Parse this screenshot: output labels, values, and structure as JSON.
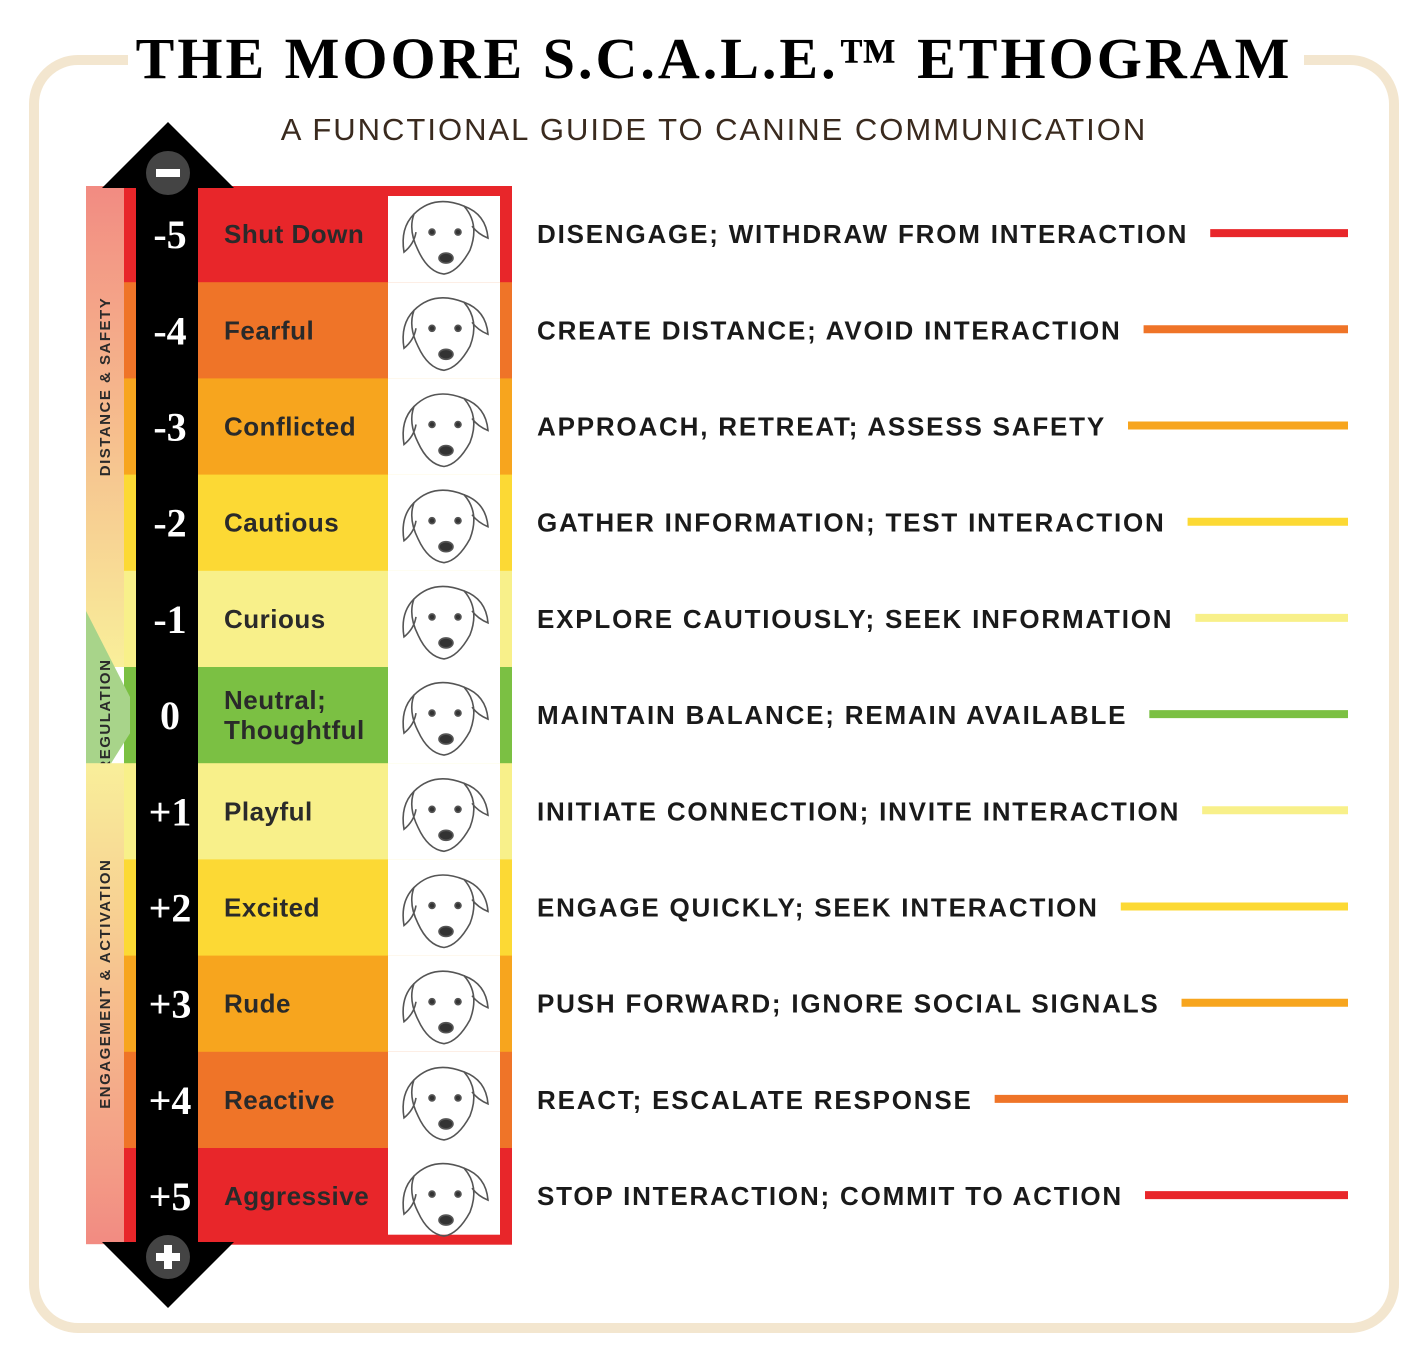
{
  "header": {
    "title": "THE MOORE S.C.A.L.E.™ ETHOGRAM",
    "subtitle": "A FUNCTIONAL GUIDE TO CANINE COMMUNICATION"
  },
  "zones": [
    {
      "label": "DISTANCE & SAFETY",
      "from": 0,
      "to": 4,
      "top": "#f28b82",
      "bottom": "#f9ef9a"
    },
    {
      "label": "REGULATION",
      "from": 5,
      "to": 5,
      "top": "#a8d48a",
      "bottom": "#a8d48a"
    },
    {
      "label": "ENGAGEMENT & ACTIVATION",
      "from": 6,
      "to": 10,
      "top": "#f9ef9a",
      "bottom": "#f28b82"
    }
  ],
  "rows": [
    {
      "score": "-5",
      "state": [
        "Shut Down"
      ],
      "description": "DISENGAGE; WITHDRAW FROM INTERACTION",
      "color": "#e8262a"
    },
    {
      "score": "-4",
      "state": [
        "Fearful"
      ],
      "description": "CREATE DISTANCE; AVOID INTERACTION",
      "color": "#ef7428"
    },
    {
      "score": "-3",
      "state": [
        "Conflicted"
      ],
      "description": "APPROACH, RETREAT; ASSESS SAFETY",
      "color": "#f7a51e"
    },
    {
      "score": "-2",
      "state": [
        "Cautious"
      ],
      "description": "GATHER INFORMATION; TEST INTERACTION",
      "color": "#fcd934"
    },
    {
      "score": "-1",
      "state": [
        "Curious"
      ],
      "description": "EXPLORE CAUTIOUSLY; SEEK INFORMATION",
      "color": "#f8f08a"
    },
    {
      "score": "0",
      "state": [
        "Neutral;",
        "Thoughtful"
      ],
      "description": "MAINTAIN BALANCE; REMAIN AVAILABLE",
      "color": "#7bc043"
    },
    {
      "score": "+1",
      "state": [
        "Playful"
      ],
      "description": "INITIATE CONNECTION; INVITE INTERACTION",
      "color": "#f8f08a"
    },
    {
      "score": "+2",
      "state": [
        "Excited"
      ],
      "description": "ENGAGE QUICKLY; SEEK INTERACTION",
      "color": "#fcd934"
    },
    {
      "score": "+3",
      "state": [
        "Rude"
      ],
      "description": "PUSH FORWARD; IGNORE SOCIAL SIGNALS",
      "color": "#f7a51e"
    },
    {
      "score": "+4",
      "state": [
        "Reactive"
      ],
      "description": "REACT; ESCALATE RESPONSE",
      "color": "#ef7428"
    },
    {
      "score": "+5",
      "state": [
        "Aggressive"
      ],
      "description": "STOP INTERACTION; COMMIT TO ACTION",
      "color": "#e8262a"
    }
  ]
}
